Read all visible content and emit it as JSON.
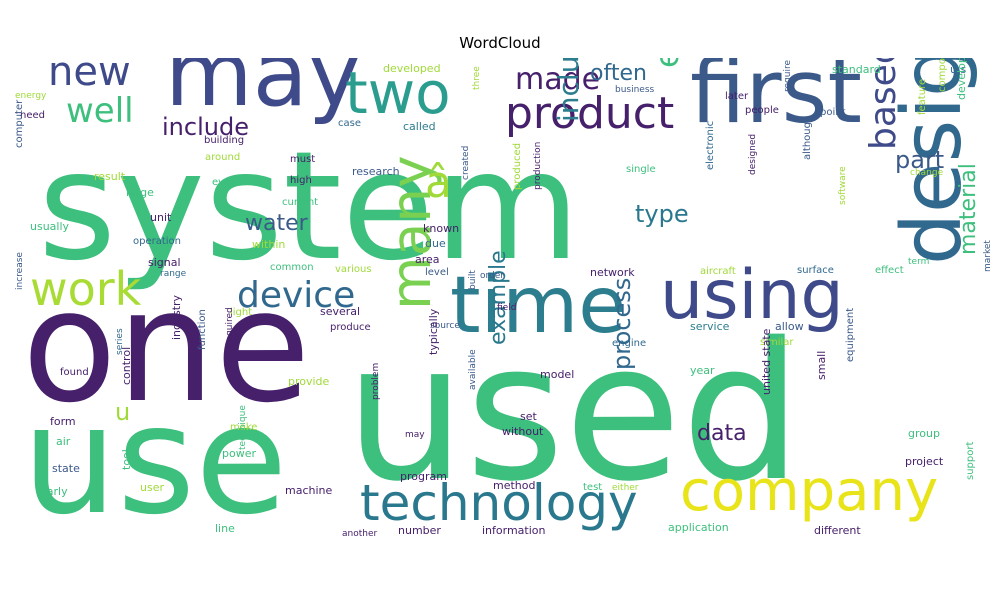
{
  "title": "WordCloud",
  "chart_data": {
    "type": "wordcloud",
    "title": "WordCloud",
    "words": [
      {
        "text": "system",
        "color": "#3dbf7d"
      },
      {
        "text": "used",
        "color": "#3dbf7d"
      },
      {
        "text": "one",
        "color": "#46206b"
      },
      {
        "text": "use",
        "color": "#3dbf7d"
      },
      {
        "text": "first",
        "color": "#3b5a8a"
      },
      {
        "text": "may",
        "color": "#3e4a89"
      },
      {
        "text": "time",
        "color": "#2c7d8e"
      },
      {
        "text": "using",
        "color": "#3e4a89"
      },
      {
        "text": "design",
        "color": "#31688e"
      },
      {
        "text": "company",
        "color": "#e8e419"
      },
      {
        "text": "technology",
        "color": "#2a788e"
      },
      {
        "text": "two",
        "color": "#2a9d8f"
      },
      {
        "text": "new",
        "color": "#3e4a89"
      },
      {
        "text": "product",
        "color": "#46206b"
      },
      {
        "text": "work",
        "color": "#a8db34"
      },
      {
        "text": "many",
        "color": "#7ad151"
      },
      {
        "text": "device",
        "color": "#31688e"
      },
      {
        "text": "well",
        "color": "#3dbf7d"
      },
      {
        "text": "made",
        "color": "#46206b"
      },
      {
        "text": "based",
        "color": "#3e4a89"
      },
      {
        "text": "â",
        "color": "#a0da39"
      },
      {
        "text": "include",
        "color": "#46206b"
      },
      {
        "text": "including",
        "color": "#2c7d8e"
      },
      {
        "text": "often",
        "color": "#31688e"
      },
      {
        "text": "part",
        "color": "#3b5a8a"
      },
      {
        "text": "water",
        "color": "#3b5a8a"
      },
      {
        "text": "type",
        "color": "#2a788e"
      },
      {
        "text": "material",
        "color": "#3dbf7d"
      },
      {
        "text": "process",
        "color": "#31688e"
      },
      {
        "text": "example",
        "color": "#2a788e"
      },
      {
        "text": "data",
        "color": "#46206b"
      },
      {
        "text": "u",
        "color": "#a0da39"
      },
      {
        "text": "developed",
        "color": "#a0da39"
      },
      {
        "text": "end",
        "color": "#3dbf7d"
      },
      {
        "text": "energy",
        "color": "#a0da39"
      },
      {
        "text": "need",
        "color": "#46206b"
      },
      {
        "text": "computer",
        "color": "#3b5a8a"
      },
      {
        "text": "usually",
        "color": "#3dbf7d"
      },
      {
        "text": "case",
        "color": "#31688e"
      },
      {
        "text": "called",
        "color": "#2c7d8e"
      },
      {
        "text": "three",
        "color": "#a0da39"
      },
      {
        "text": "business",
        "color": "#3b5a8a"
      },
      {
        "text": "later",
        "color": "#46206b"
      },
      {
        "text": "people",
        "color": "#46206b"
      },
      {
        "text": "standard",
        "color": "#3dbf7d"
      },
      {
        "text": "u s",
        "color": "#31688e"
      },
      {
        "text": "point",
        "color": "#3b5a8a"
      },
      {
        "text": "require",
        "color": "#3b5a8a"
      },
      {
        "text": "feature",
        "color": "#a0da39"
      },
      {
        "text": "component",
        "color": "#a0da39"
      },
      {
        "text": "development",
        "color": "#3dbf7d"
      },
      {
        "text": "building",
        "color": "#46206b"
      },
      {
        "text": "around",
        "color": "#a0da39"
      },
      {
        "text": "must",
        "color": "#46206b"
      },
      {
        "text": "research",
        "color": "#3b5a8a"
      },
      {
        "text": "created",
        "color": "#3b5a8a"
      },
      {
        "text": "result",
        "color": "#a0da39"
      },
      {
        "text": "high",
        "color": "#46206b"
      },
      {
        "text": "even",
        "color": "#3dbf7d"
      },
      {
        "text": "current",
        "color": "#3dbf7d"
      },
      {
        "text": "large",
        "color": "#3dbf7d"
      },
      {
        "text": "unit",
        "color": "#46206b"
      },
      {
        "text": "single",
        "color": "#3dbf7d"
      },
      {
        "text": "electronic",
        "color": "#31688e"
      },
      {
        "text": "designed",
        "color": "#46206b"
      },
      {
        "text": "although",
        "color": "#3b5a8a"
      },
      {
        "text": "software",
        "color": "#a0da39"
      },
      {
        "text": "change",
        "color": "#a0da39"
      },
      {
        "text": "term",
        "color": "#3dbf7d"
      },
      {
        "text": "operation",
        "color": "#31688e"
      },
      {
        "text": "produced",
        "color": "#a0da39"
      },
      {
        "text": "production",
        "color": "#46206b"
      },
      {
        "text": "known",
        "color": "#46206b"
      },
      {
        "text": "due",
        "color": "#31688e"
      },
      {
        "text": "area",
        "color": "#46206b"
      },
      {
        "text": "level",
        "color": "#3b5a8a"
      },
      {
        "text": "signal",
        "color": "#46206b"
      },
      {
        "text": "within",
        "color": "#a0da39"
      },
      {
        "text": "range",
        "color": "#31688e"
      },
      {
        "text": "common",
        "color": "#3dbf7d"
      },
      {
        "text": "various",
        "color": "#a0da39"
      },
      {
        "text": "order",
        "color": "#3b5a8a"
      },
      {
        "text": "built",
        "color": "#3b5a8a"
      },
      {
        "text": "network",
        "color": "#46206b"
      },
      {
        "text": "aircraft",
        "color": "#a0da39"
      },
      {
        "text": "surface",
        "color": "#31688e"
      },
      {
        "text": "effect",
        "color": "#3dbf7d"
      },
      {
        "text": "market",
        "color": "#3b5a8a"
      },
      {
        "text": "increase",
        "color": "#3b5a8a"
      },
      {
        "text": "light",
        "color": "#a0da39"
      },
      {
        "text": "several",
        "color": "#46206b"
      },
      {
        "text": "produce",
        "color": "#46206b"
      },
      {
        "text": "field",
        "color": "#46206b"
      },
      {
        "text": "source",
        "color": "#3b5a8a"
      },
      {
        "text": "service",
        "color": "#2c7d8e"
      },
      {
        "text": "allow",
        "color": "#3b5a8a"
      },
      {
        "text": "engine",
        "color": "#31688e"
      },
      {
        "text": "similar",
        "color": "#a0da39"
      },
      {
        "text": "industry",
        "color": "#46206b"
      },
      {
        "text": "function",
        "color": "#3b5a8a"
      },
      {
        "text": "series",
        "color": "#31688e"
      },
      {
        "text": "found",
        "color": "#46206b"
      },
      {
        "text": "required",
        "color": "#46206b"
      },
      {
        "text": "provide",
        "color": "#a0da39"
      },
      {
        "text": "typically",
        "color": "#46206b"
      },
      {
        "text": "model",
        "color": "#46206b"
      },
      {
        "text": "year",
        "color": "#3dbf7d"
      },
      {
        "text": "small",
        "color": "#46206b"
      },
      {
        "text": "equipment",
        "color": "#3b5a8a"
      },
      {
        "text": "form",
        "color": "#46206b"
      },
      {
        "text": "make",
        "color": "#a0da39"
      },
      {
        "text": "problem",
        "color": "#46206b"
      },
      {
        "text": "available",
        "color": "#3b5a8a"
      },
      {
        "text": "set",
        "color": "#46206b"
      },
      {
        "text": "without",
        "color": "#46206b"
      },
      {
        "text": "united state",
        "color": "#46206b"
      },
      {
        "text": "group",
        "color": "#3dbf7d"
      },
      {
        "text": "air",
        "color": "#3dbf7d"
      },
      {
        "text": "control",
        "color": "#46206b"
      },
      {
        "text": "power",
        "color": "#3dbf7d"
      },
      {
        "text": "may",
        "color": "#46206b"
      },
      {
        "text": "state",
        "color": "#3b5a8a"
      },
      {
        "text": "technique",
        "color": "#3dbf7d"
      },
      {
        "text": "program",
        "color": "#46206b"
      },
      {
        "text": "project",
        "color": "#46206b"
      },
      {
        "text": "early",
        "color": "#3dbf7d"
      },
      {
        "text": "user",
        "color": "#a0da39"
      },
      {
        "text": "method",
        "color": "#46206b"
      },
      {
        "text": "test",
        "color": "#3dbf7d"
      },
      {
        "text": "either",
        "color": "#a0da39"
      },
      {
        "text": "machine",
        "color": "#46206b"
      },
      {
        "text": "tool",
        "color": "#3dbf7d"
      },
      {
        "text": "support",
        "color": "#3dbf7d"
      },
      {
        "text": "line",
        "color": "#3dbf7d"
      },
      {
        "text": "number",
        "color": "#46206b"
      },
      {
        "text": "information",
        "color": "#46206b"
      },
      {
        "text": "application",
        "color": "#3dbf7d"
      },
      {
        "text": "different",
        "color": "#46206b"
      },
      {
        "text": "another",
        "color": "#46206b"
      }
    ]
  }
}
